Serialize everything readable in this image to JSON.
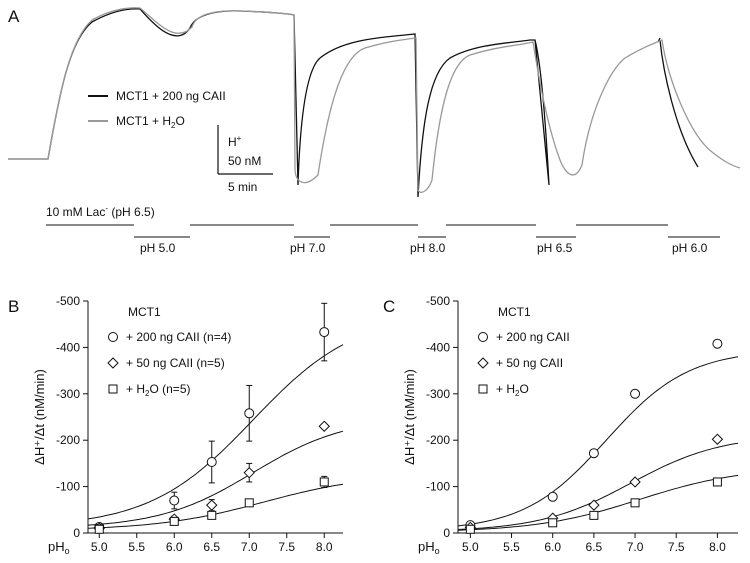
{
  "panels": {
    "a": "A",
    "b": "B",
    "c": "C"
  },
  "trace": {
    "legend": [
      {
        "text": "MCT1 + 200 ng CAII",
        "color": "#111111"
      },
      {
        "text_main": "MCT1 + H",
        "text_sub": "2",
        "text_end": "O",
        "color": "#999999"
      }
    ],
    "scalebar": {
      "y_unit_sup_base": "H",
      "y_unit_sup": "+",
      "y_value": "50 nM",
      "x_value": "5 min"
    },
    "protocol": {
      "baseline_text": "10 mM Lac",
      "baseline_sup": "-",
      "baseline_ph": " (pH 6.5)",
      "ph_steps": [
        "pH 5.0",
        "pH 7.0",
        "pH 8.0",
        "pH 6.5",
        "pH 6.0"
      ]
    }
  },
  "chart_data": [
    {
      "panel": "B",
      "type": "scatter",
      "title": "MCT1",
      "xlabel_main": "pH",
      "xlabel_sub": "o",
      "ylabel": "ΔH⁺/Δt (nM/min)",
      "xlim": [
        4.85,
        8.25
      ],
      "ylim": [
        0,
        -500
      ],
      "xticks": [
        5.0,
        5.5,
        6.0,
        6.5,
        7.0,
        7.5,
        8.0
      ],
      "xtick_labels": [
        "5.0",
        "5.5",
        "6.0",
        "6.5",
        "7.0",
        "7.5",
        "8.0"
      ],
      "yticks": [
        0,
        -100,
        -200,
        -300,
        -400,
        -500
      ],
      "ytick_labels": [
        "0",
        "-100",
        "-200",
        "-300",
        "-400",
        "-500"
      ],
      "x": [
        5.0,
        6.0,
        6.5,
        7.0,
        8.0
      ],
      "series": [
        {
          "name": "+ 200 ng CAII (n=4)",
          "marker": "circle",
          "values": [
            -13,
            -70,
            -153,
            -258,
            -433
          ],
          "errors": [
            6,
            18,
            45,
            60,
            62
          ],
          "fit": {
            "bottom": -12,
            "top": -475,
            "pk": 7.05,
            "slope": 1.45
          }
        },
        {
          "name": "+ 50 ng CAII  (n=5)",
          "marker": "diamond",
          "values": [
            -10,
            -30,
            -60,
            -130,
            -230
          ],
          "errors": [
            4,
            6,
            12,
            20,
            5
          ],
          "fit": {
            "bottom": -10,
            "top": -250,
            "pk": 7.05,
            "slope": 1.6
          }
        },
        {
          "name": "+ H2O  (n=5)",
          "marker": "square",
          "values": [
            -8,
            -25,
            -38,
            -65,
            -110
          ],
          "errors": [
            3,
            4,
            5,
            6,
            12
          ],
          "fit": {
            "bottom": -6,
            "top": -128,
            "pk": 7.2,
            "slope": 1.4
          }
        }
      ]
    },
    {
      "panel": "C",
      "type": "scatter",
      "title": "MCT1",
      "xlabel_main": "pH",
      "xlabel_sub": "o",
      "ylabel": "ΔH⁺/Δt (nM/min)",
      "xlim": [
        4.85,
        8.25
      ],
      "ylim": [
        0,
        -500
      ],
      "xticks": [
        5.0,
        5.5,
        6.0,
        6.5,
        7.0,
        7.5,
        8.0
      ],
      "xtick_labels": [
        "5.0",
        "5.5",
        "6.0",
        "6.5",
        "7.0",
        "7.5",
        "8.0"
      ],
      "yticks": [
        0,
        -100,
        -200,
        -300,
        -400,
        -500
      ],
      "ytick_labels": [
        "0",
        "-100",
        "-200",
        "-300",
        "-400",
        "-500"
      ],
      "x": [
        5.0,
        6.0,
        6.5,
        7.0,
        8.0
      ],
      "series": [
        {
          "name": "+ 200 ng CAII",
          "marker": "circle",
          "values": [
            -17,
            -78,
            -172,
            -300,
            -408
          ],
          "fit": {
            "bottom": -5,
            "top": -395,
            "pk": 6.65,
            "slope": 2.0
          }
        },
        {
          "name": "+ 50 ng CAII",
          "marker": "diamond",
          "values": [
            -12,
            -32,
            -60,
            -110,
            -202
          ],
          "fit": {
            "bottom": -3,
            "top": -212,
            "pk": 6.95,
            "slope": 1.8
          }
        },
        {
          "name": "+ H2O",
          "marker": "square",
          "values": [
            -8,
            -22,
            -38,
            -65,
            -110
          ],
          "fit": {
            "bottom": -2,
            "top": -142,
            "pk": 7.05,
            "slope": 1.6
          }
        }
      ]
    }
  ]
}
